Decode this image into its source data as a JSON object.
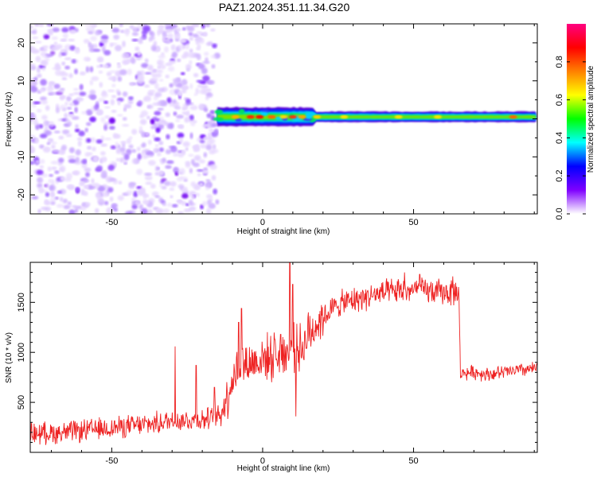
{
  "title": "PAZ1.2024.351.11.34.G20",
  "chart_data": [
    {
      "type": "heatmap",
      "xlabel": "Height of straight line (km)",
      "ylabel": "Frequency (Hz)",
      "xlim": [
        -77,
        91
      ],
      "ylim": [
        -25,
        25
      ],
      "xticks": [
        -50,
        0,
        50
      ],
      "yticks": [
        20,
        10,
        0,
        -10,
        -20
      ],
      "noise_region_x": [
        -77,
        -15
      ],
      "signal_line_x": [
        -15,
        91
      ],
      "signal_frequency_hz": 0.5,
      "colorbar": {
        "label": "Normalized spectral amplitude",
        "range": [
          0,
          1
        ],
        "ticks": [
          "0.0",
          "0.2",
          "0.4",
          "0.6",
          "0.8"
        ],
        "colormap": [
          "#ffffff",
          "#7f00ff",
          "#0000ff",
          "#00ffff",
          "#00ff00",
          "#ffff00",
          "#ff8000",
          "#ff0000",
          "#ff0080"
        ]
      }
    },
    {
      "type": "line",
      "xlabel": "Height of straight line (km)",
      "ylabel": "SNR (10 * v/v)",
      "xlim": [
        -77,
        91
      ],
      "ylim": [
        0,
        1900
      ],
      "xticks": [
        -50,
        0,
        50
      ],
      "yticks": [
        500,
        1000,
        1500
      ],
      "color": "#ee2222",
      "baseline": [
        [
          -77,
          190
        ],
        [
          -65,
          200
        ],
        [
          -55,
          230
        ],
        [
          -45,
          260
        ],
        [
          -35,
          290
        ],
        [
          -30,
          320
        ],
        [
          -25,
          320
        ],
        [
          -20,
          330
        ],
        [
          -16,
          340
        ],
        [
          -14,
          380
        ],
        [
          -12,
          540
        ],
        [
          -10,
          740
        ],
        [
          -7,
          900
        ],
        [
          -5,
          880
        ],
        [
          0,
          940
        ],
        [
          5,
          960
        ],
        [
          8,
          1000
        ],
        [
          10,
          1050
        ],
        [
          13,
          1050
        ],
        [
          15,
          1150
        ],
        [
          18,
          1300
        ],
        [
          20,
          1350
        ],
        [
          25,
          1480
        ],
        [
          30,
          1520
        ],
        [
          35,
          1560
        ],
        [
          40,
          1590
        ],
        [
          45,
          1610
        ],
        [
          50,
          1620
        ],
        [
          55,
          1610
        ],
        [
          60,
          1600
        ],
        [
          65,
          1600
        ],
        [
          65.5,
          790
        ],
        [
          70,
          800
        ],
        [
          75,
          780
        ],
        [
          80,
          800
        ],
        [
          85,
          820
        ],
        [
          91,
          840
        ]
      ],
      "spikes": [
        [
          -29,
          1060
        ],
        [
          -22,
          870
        ],
        [
          -16,
          650
        ],
        [
          -8,
          1300
        ],
        [
          -7,
          1440
        ],
        [
          4,
          1130
        ],
        [
          6,
          1180
        ],
        [
          9,
          1900
        ],
        [
          10,
          1680
        ],
        [
          11,
          360
        ],
        [
          15,
          1350
        ],
        [
          47,
          1800
        ],
        [
          52,
          1780
        ],
        [
          63,
          1760
        ]
      ]
    }
  ]
}
